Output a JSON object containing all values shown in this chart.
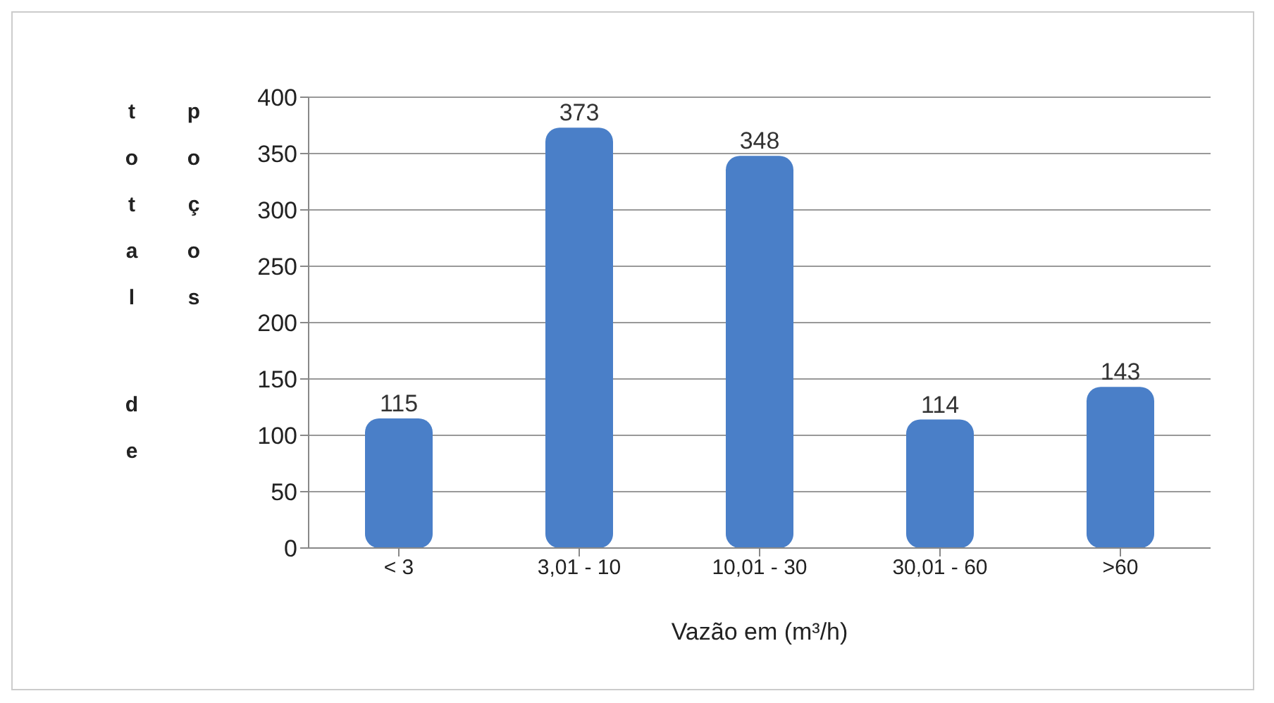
{
  "chart_data": {
    "type": "bar",
    "xlabel": "Vazão em (m³/h)",
    "ylabel": "total de poços",
    "categories": [
      "< 3",
      "3,01 - 10",
      "10,01 - 30",
      "30,01 - 60",
      ">60"
    ],
    "values": [
      115,
      373,
      348,
      114,
      143
    ],
    "color": "#4a7fc8",
    "ylim": [
      0,
      400
    ],
    "yticks": [
      0,
      50,
      100,
      150,
      200,
      250,
      300,
      350,
      400
    ],
    "grid": "y",
    "data_labels": true
  }
}
